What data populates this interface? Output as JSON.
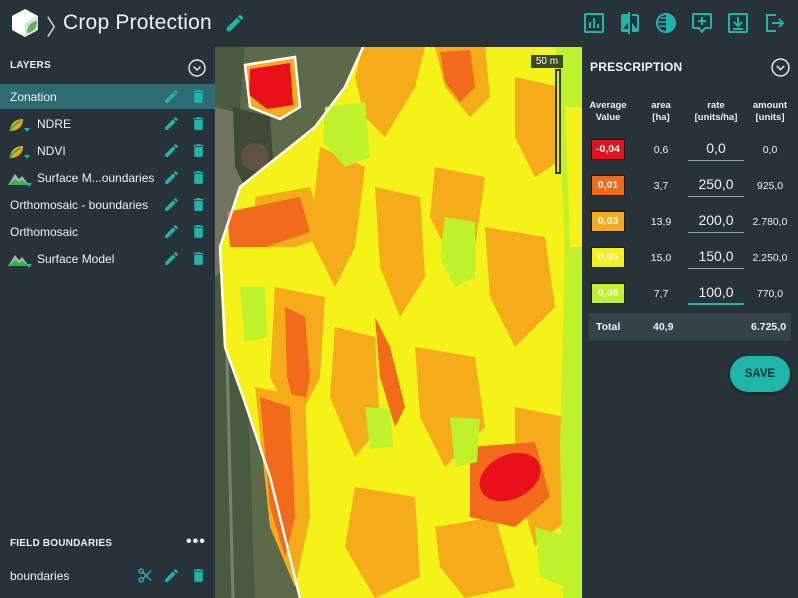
{
  "header": {
    "breadcrumb_sep": "〉",
    "title": "Crop Protection",
    "actions": [
      {
        "icon": "bar-chart-icon"
      },
      {
        "icon": "compare-icon"
      },
      {
        "icon": "contrast-icon"
      },
      {
        "icon": "add-annotation-icon"
      },
      {
        "icon": "download-icon"
      },
      {
        "icon": "exit-icon"
      }
    ]
  },
  "layers": {
    "heading": "LAYERS",
    "items": [
      {
        "label": "Zonation",
        "active": true
      },
      {
        "label": "NDRE",
        "icon": "index-leaf-icon"
      },
      {
        "label": "NDVI",
        "icon": "index-leaf-icon"
      },
      {
        "label": "Surface M...oundaries",
        "icon": "terrain-icon"
      },
      {
        "label": "Orthomosaic - boundaries"
      },
      {
        "label": "Orthomosaic"
      },
      {
        "label": "Surface Model",
        "icon": "terrain-icon"
      }
    ]
  },
  "field_boundaries": {
    "heading": "FIELD BOUNDARIES",
    "more": "•••",
    "items": [
      {
        "label": "boundaries"
      }
    ]
  },
  "map": {
    "scale_label": "50 m"
  },
  "prescription": {
    "title": "PRESCRIPTION",
    "headers": {
      "avg_value": "Average Value",
      "area": "area [ha]",
      "rate": "rate [units/ha]",
      "amount": "amount [units]"
    },
    "rows": [
      {
        "value": "-0,04",
        "area": "0,6",
        "rate": "0,0",
        "amount": "0,0",
        "color": "#e8101a",
        "text_color": "#ffffff"
      },
      {
        "value": "0,01",
        "area": "3,7",
        "rate": "250,0",
        "amount": "925,0",
        "color": "#f26a1c",
        "text_color": "#ffffff"
      },
      {
        "value": "0,03",
        "area": "13,9",
        "rate": "200,0",
        "amount": "2.780,0",
        "color": "#f5ab1a",
        "text_color": "#ffffff"
      },
      {
        "value": "0,05",
        "area": "15,0",
        "rate": "150,0",
        "amount": "2.250,0",
        "color": "#f4f218",
        "text_color": "#ffffff"
      },
      {
        "value": "0,06",
        "area": "7,7",
        "rate": "100,0",
        "amount": "770,0",
        "color": "#bff22c",
        "text_color": "#ffffff"
      }
    ],
    "total": {
      "label": "Total",
      "area": "40,9",
      "amount": "6.725,0"
    },
    "save_label": "SAVE"
  },
  "colors": {
    "accent": "#1fb5ad",
    "active_layer": "#2e6b74",
    "panel_bg": "#273339"
  }
}
